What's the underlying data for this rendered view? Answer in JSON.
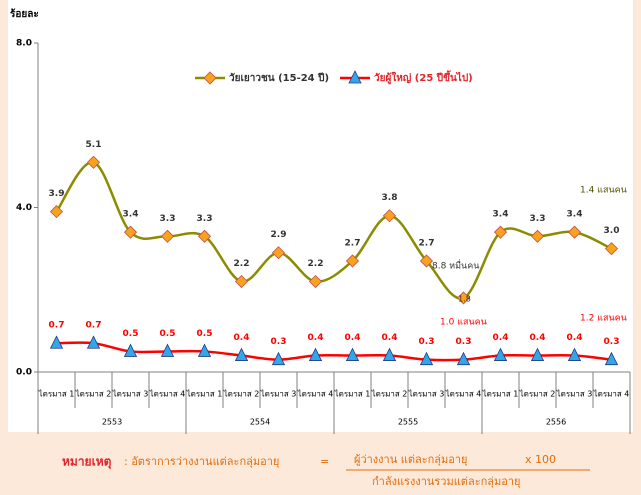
{
  "chart_data": {
    "type": "line",
    "ylabel": "ร้อยละ",
    "categories": [
      "ไตรมาส 1",
      "ไตรมาส 2",
      "ไตรมาส 3",
      "ไตรมาส 4",
      "ไตรมาส 1",
      "ไตรมาส 2",
      "ไตรมาส 3",
      "ไตรมาส 4",
      "ไตรมาส 1",
      "ไตรมาส 2",
      "ไตรมาส 3",
      "ไตรมาส 4",
      "ไตรมาส 1",
      "ไตรมาส 2",
      "ไตรมาส 3",
      "ไตรมาส 4"
    ],
    "year_groups": [
      "2553",
      "2554",
      "2555",
      "2556"
    ],
    "series": [
      {
        "name": "วัยเยาวชน (15-24 ปี)",
        "color": "#8c8c00",
        "marker_color": "#f9a21b",
        "values": [
          3.9,
          5.1,
          3.4,
          3.3,
          3.3,
          2.2,
          2.9,
          2.2,
          2.7,
          3.8,
          2.7,
          1.8,
          3.4,
          3.3,
          3.4,
          3.0
        ],
        "value_labels": [
          "3.9",
          "5.1",
          "3.4",
          "3.3",
          "3.3",
          "2.2",
          "2.9",
          "2.2",
          "2.7",
          "3.8",
          "2.7",
          "1.8",
          "3.4",
          "3.3",
          "3.4",
          "3.0"
        ]
      },
      {
        "name": "วัยผู้ใหญ่ (25 ปีขึ้นไป)",
        "color": "#ff0000",
        "marker_color": "#33a6e8",
        "values": [
          0.7,
          0.7,
          0.5,
          0.5,
          0.5,
          0.4,
          0.3,
          0.4,
          0.4,
          0.4,
          0.3,
          0.3,
          0.4,
          0.4,
          0.4,
          0.3
        ],
        "value_labels": [
          "0.7",
          "0.7",
          "0.5",
          "0.5",
          "0.5",
          "0.4",
          "0.3",
          "0.4",
          "0.4",
          "0.4",
          "0.3",
          "0.3",
          "0.4",
          "0.4",
          "0.4",
          "0.3"
        ]
      }
    ],
    "ylim": [
      0,
      8
    ],
    "yticks": [
      {
        "value": 0,
        "label": "0.0"
      },
      {
        "value": 4,
        "label": "4.0"
      },
      {
        "value": 8,
        "label": "8.0"
      }
    ],
    "annotations": [
      "1.4 แสนคน",
      "8.8 หมื่นคน",
      "1.0 แสนคน",
      "1.2 แสนคน"
    ]
  },
  "note": {
    "label": "หมายเหตุ",
    "text": ": อัตราการว่างงานแต่ละกลุ่มอายุ",
    "equals": "=",
    "numerator": "ผู้ว่างงาน แต่ละกลุ่มอายุ",
    "multiplier": "x 100",
    "denominator": "กำลังแรงงานรวมแต่ละกลุ่มอายุ"
  }
}
